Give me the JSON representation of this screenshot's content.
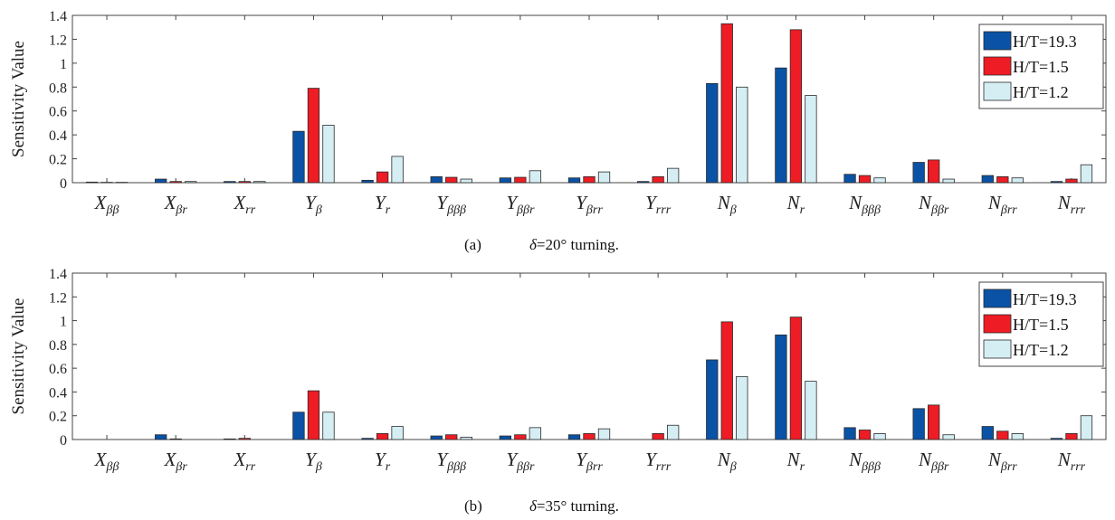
{
  "colors": {
    "series": [
      "#0a52a6",
      "#ee1c25",
      "#d5eef4"
    ],
    "bar_stroke": "#2a2a2a",
    "axis": "#444444"
  },
  "chart_data": [
    {
      "type": "bar",
      "panel": "a",
      "caption_label": "(a)",
      "caption_symbol": "δ",
      "caption_text": "=20° turning.",
      "ylabel": "Sensitivity Value",
      "ylim": [
        0,
        1.4
      ],
      "yticks": [
        "0",
        "0.2",
        "0.4",
        "0.6",
        "0.8",
        "1",
        "1.2",
        "1.4"
      ],
      "legend_position": "top-right",
      "categories": [
        {
          "base": "X",
          "sub": "ββ"
        },
        {
          "base": "X",
          "sub": "βr"
        },
        {
          "base": "X",
          "sub": "rr"
        },
        {
          "base": "Y",
          "sub": "β"
        },
        {
          "base": "Y",
          "sub": "r"
        },
        {
          "base": "Y",
          "sub": "βββ"
        },
        {
          "base": "Y",
          "sub": "ββr"
        },
        {
          "base": "Y",
          "sub": "βrr"
        },
        {
          "base": "Y",
          "sub": "rrr"
        },
        {
          "base": "N",
          "sub": "β"
        },
        {
          "base": "N",
          "sub": "r"
        },
        {
          "base": "N",
          "sub": "βββ"
        },
        {
          "base": "N",
          "sub": "ββr"
        },
        {
          "base": "N",
          "sub": "βrr"
        },
        {
          "base": "N",
          "sub": "rrr"
        }
      ],
      "series": [
        {
          "name": "H/T=19.3",
          "values": [
            0.005,
            0.03,
            0.01,
            0.43,
            0.02,
            0.05,
            0.04,
            0.04,
            0.01,
            0.83,
            0.96,
            0.07,
            0.17,
            0.06,
            0.01
          ]
        },
        {
          "name": "H/T=1.5",
          "values": [
            0.003,
            0.01,
            0.01,
            0.79,
            0.09,
            0.045,
            0.045,
            0.05,
            0.05,
            1.33,
            1.28,
            0.06,
            0.19,
            0.05,
            0.03
          ]
        },
        {
          "name": "H/T=1.2",
          "values": [
            0.003,
            0.01,
            0.01,
            0.48,
            0.22,
            0.03,
            0.1,
            0.09,
            0.12,
            0.8,
            0.73,
            0.04,
            0.03,
            0.04,
            0.15
          ]
        }
      ]
    },
    {
      "type": "bar",
      "panel": "b",
      "caption_label": "(b)",
      "caption_symbol": "δ",
      "caption_text": "=35° turning.",
      "ylabel": "Sensitivity Value",
      "ylim": [
        0,
        1.4
      ],
      "yticks": [
        "0",
        "0.2",
        "0.4",
        "0.6",
        "0.8",
        "1",
        "1.2",
        "1.4"
      ],
      "legend_position": "top-right",
      "categories": [
        {
          "base": "X",
          "sub": "ββ"
        },
        {
          "base": "X",
          "sub": "βr"
        },
        {
          "base": "X",
          "sub": "rr"
        },
        {
          "base": "Y",
          "sub": "β"
        },
        {
          "base": "Y",
          "sub": "r"
        },
        {
          "base": "Y",
          "sub": "βββ"
        },
        {
          "base": "Y",
          "sub": "ββr"
        },
        {
          "base": "Y",
          "sub": "βrr"
        },
        {
          "base": "Y",
          "sub": "rrr"
        },
        {
          "base": "N",
          "sub": "β"
        },
        {
          "base": "N",
          "sub": "r"
        },
        {
          "base": "N",
          "sub": "βββ"
        },
        {
          "base": "N",
          "sub": "ββr"
        },
        {
          "base": "N",
          "sub": "βrr"
        },
        {
          "base": "N",
          "sub": "rrr"
        }
      ],
      "series": [
        {
          "name": "H/T=19.3",
          "values": [
            0.0,
            0.04,
            0.005,
            0.23,
            0.01,
            0.03,
            0.03,
            0.04,
            0.0,
            0.67,
            0.88,
            0.1,
            0.26,
            0.11,
            0.01
          ]
        },
        {
          "name": "H/T=1.5",
          "values": [
            0.0,
            0.005,
            0.01,
            0.41,
            0.05,
            0.04,
            0.04,
            0.05,
            0.05,
            0.99,
            1.03,
            0.08,
            0.29,
            0.07,
            0.05
          ]
        },
        {
          "name": "H/T=1.2",
          "values": [
            0.0,
            0.0,
            0.0,
            0.23,
            0.11,
            0.02,
            0.1,
            0.09,
            0.12,
            0.53,
            0.49,
            0.05,
            0.04,
            0.05,
            0.2
          ]
        }
      ]
    }
  ]
}
